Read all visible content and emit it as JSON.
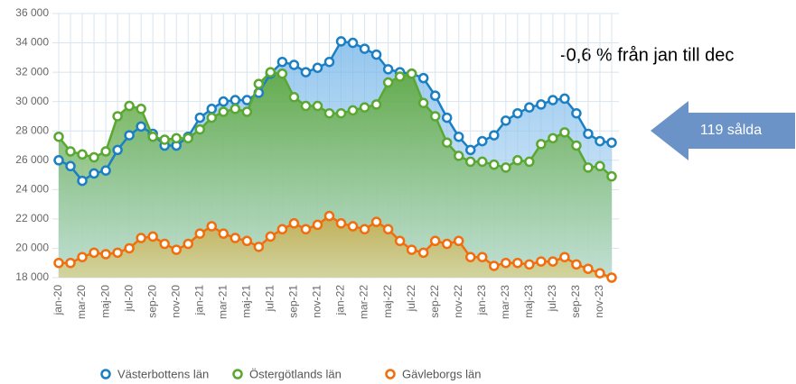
{
  "chart_data": {
    "type": "area",
    "annotation": "-0,6 % från jan till dec",
    "callout": "119 sålda",
    "categories": [
      "jan-20",
      null,
      "mar-20",
      null,
      "maj-20",
      null,
      "jul-20",
      null,
      "sep-20",
      null,
      "nov-20",
      null,
      "jan-21",
      null,
      "mar-21",
      null,
      "maj-21",
      null,
      "jul-21",
      null,
      "sep-21",
      null,
      "nov-21",
      null,
      "jan-22",
      null,
      "mar-22",
      null,
      "maj-22",
      null,
      "jul-22",
      null,
      "sep-22",
      null,
      "nov-22",
      null,
      "jan-23",
      null,
      "mar-23",
      null,
      "maj-23",
      null,
      "jul-23",
      null,
      "sep-23",
      null,
      "nov-23",
      null
    ],
    "series": [
      {
        "name": "Västerbottens län",
        "color": "#1b7fc4",
        "fill": "#8ec3ec",
        "values": [
          26000,
          25600,
          24600,
          25100,
          25300,
          26700,
          27700,
          28300,
          27800,
          27000,
          27000,
          27600,
          28900,
          29500,
          30000,
          30100,
          30100,
          30600,
          31900,
          32700,
          32500,
          32000,
          32300,
          32700,
          34100,
          34000,
          33600,
          33200,
          32200,
          32000,
          31900,
          31600,
          30400,
          28900,
          27600,
          26700,
          27300,
          27700,
          28700,
          29200,
          29600,
          29800,
          30100,
          30200,
          29200,
          27800,
          27300,
          27200
        ]
      },
      {
        "name": "Östergötlands län",
        "color": "#5aa732",
        "fill": "#67b04a",
        "values": [
          27600,
          26600,
          26400,
          26200,
          26600,
          29000,
          29700,
          29500,
          27600,
          27400,
          27500,
          27500,
          28100,
          28900,
          29300,
          29500,
          29300,
          31200,
          32000,
          31900,
          30300,
          29700,
          29700,
          29200,
          29200,
          29400,
          29600,
          29800,
          31300,
          31700,
          31900,
          29900,
          29000,
          27200,
          26300,
          25900,
          25900,
          25700,
          25500,
          26000,
          25900,
          27100,
          27500,
          27900,
          27000,
          25500,
          25600,
          24900
        ]
      },
      {
        "name": "Gävleborgs län",
        "color": "#f26d0c",
        "fill": "#c9a84a",
        "values": [
          19000,
          19000,
          19400,
          19700,
          19600,
          19700,
          20000,
          20700,
          20800,
          20300,
          19900,
          20300,
          21000,
          21500,
          21000,
          20700,
          20500,
          20100,
          20800,
          21300,
          21700,
          21300,
          21600,
          22200,
          21700,
          21500,
          21300,
          21800,
          21300,
          20500,
          19900,
          19700,
          20500,
          20300,
          20500,
          19400,
          19400,
          18800,
          19000,
          19000,
          18900,
          19100,
          19100,
          19400,
          18900,
          18600,
          18300,
          18000
        ]
      }
    ],
    "ylim": [
      18000,
      36000
    ],
    "yticks": [
      {
        "value": 18000,
        "label": "18 000"
      },
      {
        "value": 20000,
        "label": "20 000"
      },
      {
        "value": 22000,
        "label": "22 000"
      },
      {
        "value": 24000,
        "label": "24 000"
      },
      {
        "value": 26000,
        "label": "26 000"
      },
      {
        "value": 28000,
        "label": "28 000"
      },
      {
        "value": 30000,
        "label": "30 000"
      },
      {
        "value": 32000,
        "label": "32 000"
      },
      {
        "value": 34000,
        "label": "34 000"
      },
      {
        "value": 36000,
        "label": "36 000"
      }
    ],
    "grid": true
  }
}
